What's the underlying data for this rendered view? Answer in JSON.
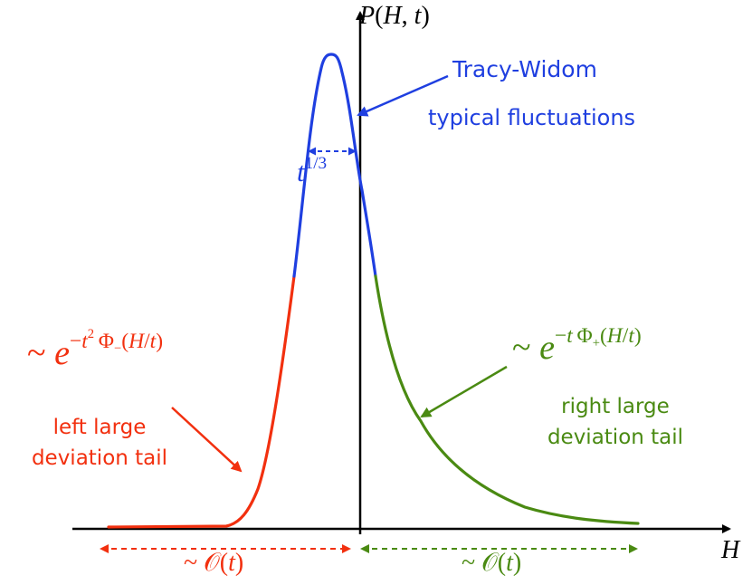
{
  "axes": {
    "y_label_html": "<i>P</i>(<i>H</i>, <i>t</i>)",
    "x_label": "H"
  },
  "annotations": {
    "tracy_widom": "Tracy-Widom",
    "typical_fluctuations": "typical fluctuations",
    "width_scale_html": "<i>t</i><sup>1/3</sup>",
    "left_exponent_html": "~ <i>e</i><sup>&minus;<i>t</i><sup>2</sup>&thinsp;&Phi;<sub>&minus;</sub>(<i>H</i>/<i>t</i>)</sup>",
    "right_exponent_html": "~ <i>e</i><sup>&minus;<i>t</i>&thinsp;&Phi;<sub>+</sub>(<i>H</i>/<i>t</i>)</sup>",
    "left_tail_line1": "left large",
    "left_tail_line2": "deviation tail",
    "right_tail_line1": "right large",
    "right_tail_line2": "deviation tail",
    "left_scale_html": "~ &#x1D4AA;(<i>t</i>)",
    "right_scale_html": "~ &#x1D4AA;(<i>t</i>)"
  },
  "colors": {
    "center_region": "#1f3fe0",
    "left_tail": "#f2300f",
    "right_tail": "#4a8a12",
    "axis": "#000000"
  }
}
